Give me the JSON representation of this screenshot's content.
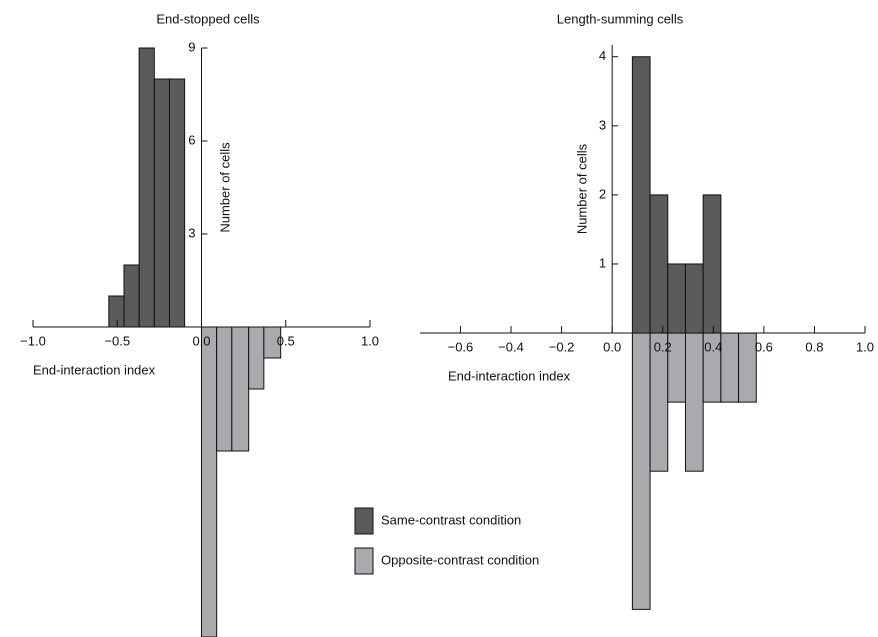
{
  "chart_data": [
    {
      "type": "histogram",
      "title": "End-stopped cells",
      "xlabel": "End-interaction index",
      "ylabel": "Number of cells",
      "xlim": [
        -1.0,
        1.0
      ],
      "xticks": [
        {
          "value": -1.0,
          "label": "−1.0"
        },
        {
          "value": -0.5,
          "label": "−0.5"
        },
        {
          "value": 0.0,
          "label": "0.0"
        },
        {
          "value": 0.5,
          "label": "0.5"
        },
        {
          "value": 1.0,
          "label": "1.0"
        }
      ],
      "ylim": [
        -10,
        9
      ],
      "yticks": [
        3,
        6,
        9
      ],
      "series": [
        {
          "name": "Same-contrast condition",
          "color": "#5a5b5d",
          "direction": "up",
          "bins": [
            -0.55,
            -0.46,
            -0.37,
            -0.28,
            -0.19,
            -0.1
          ],
          "values": [
            1,
            2,
            9,
            8,
            8
          ]
        },
        {
          "name": "Opposite-contrast condition",
          "color": "#a8aaad",
          "direction": "down",
          "bins": [
            0.0,
            0.09,
            0.18,
            0.28,
            0.37,
            0.47
          ],
          "values": [
            10,
            4,
            4,
            2,
            1
          ]
        }
      ]
    },
    {
      "type": "histogram",
      "title": "Length-summing cells",
      "xlabel": "End-interaction index",
      "ylabel": "Number of cells",
      "xlim": [
        -0.76,
        1.0
      ],
      "xticks": [
        {
          "value": -0.6,
          "label": "−0.6"
        },
        {
          "value": -0.4,
          "label": "−0.4"
        },
        {
          "value": -0.2,
          "label": "−0.2"
        },
        {
          "value": 0.0,
          "label": "0.0"
        },
        {
          "value": 0.2,
          "label": "0.2"
        },
        {
          "value": 0.4,
          "label": "0.4"
        },
        {
          "value": 0.6,
          "label": "0.6"
        },
        {
          "value": 0.8,
          "label": "0.8"
        },
        {
          "value": 1.0,
          "label": "1.0"
        }
      ],
      "ylim": [
        -4.4,
        4.17
      ],
      "yticks": [
        1,
        2,
        3,
        4
      ],
      "series": [
        {
          "color": "#5a5b5d",
          "direction": "up",
          "bins": [
            0.08,
            0.15,
            0.22,
            0.29,
            0.36,
            0.43
          ],
          "values": [
            4,
            2,
            1,
            1,
            2
          ]
        },
        {
          "color": "#a8aaad",
          "direction": "down",
          "bins": [
            0.08,
            0.15,
            0.22,
            0.29,
            0.36,
            0.43,
            0.5,
            0.57
          ],
          "values": [
            4,
            2,
            1,
            2,
            1,
            1,
            1
          ]
        }
      ]
    }
  ]
}
